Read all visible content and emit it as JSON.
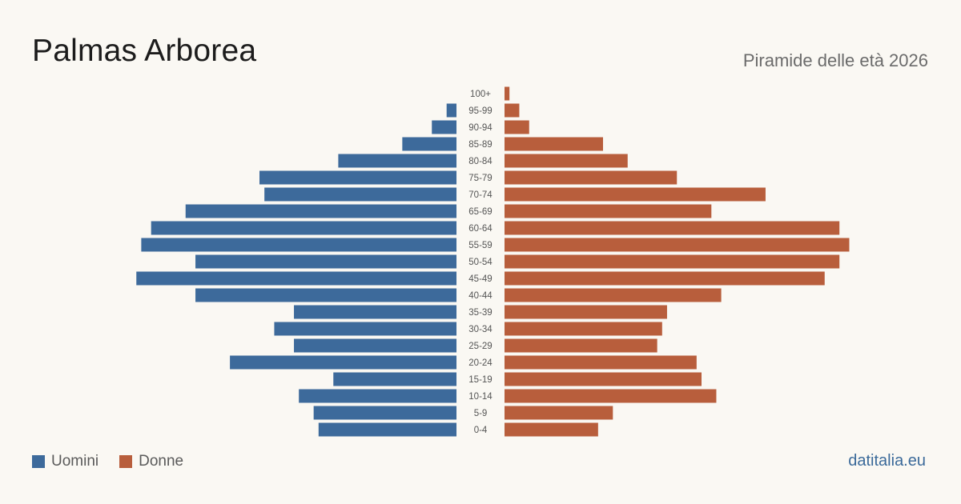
{
  "header": {
    "title": "Palmas Arborea",
    "subtitle": "Piramide delle età 2026"
  },
  "legend": {
    "men_label": "Uomini",
    "women_label": "Donne"
  },
  "brand": "datitalia.eu",
  "colors": {
    "men": "#3d6a9b",
    "women": "#b85e3c",
    "background": "#faf8f3"
  },
  "chart_data": {
    "type": "bar",
    "orientation": "horizontal-pyramid",
    "title": "Palmas Arborea",
    "subtitle": "Piramide delle età 2026",
    "categories": [
      "100+",
      "95-99",
      "90-94",
      "85-89",
      "80-84",
      "75-79",
      "70-74",
      "65-69",
      "60-64",
      "55-59",
      "50-54",
      "45-49",
      "40-44",
      "35-39",
      "30-34",
      "25-29",
      "20-24",
      "15-19",
      "10-14",
      "5-9",
      "0-4"
    ],
    "series": [
      {
        "name": "Uomini",
        "side": "left",
        "values": [
          0,
          2,
          5,
          11,
          24,
          40,
          39,
          55,
          62,
          64,
          53,
          65,
          53,
          33,
          37,
          33,
          46,
          25,
          32,
          29,
          28
        ]
      },
      {
        "name": "Donne",
        "side": "right",
        "values": [
          1,
          3,
          5,
          20,
          25,
          35,
          53,
          42,
          68,
          70,
          68,
          65,
          44,
          33,
          32,
          31,
          39,
          40,
          43,
          22,
          19
        ]
      }
    ],
    "legend_position": "bottom-left",
    "grid": false
  }
}
